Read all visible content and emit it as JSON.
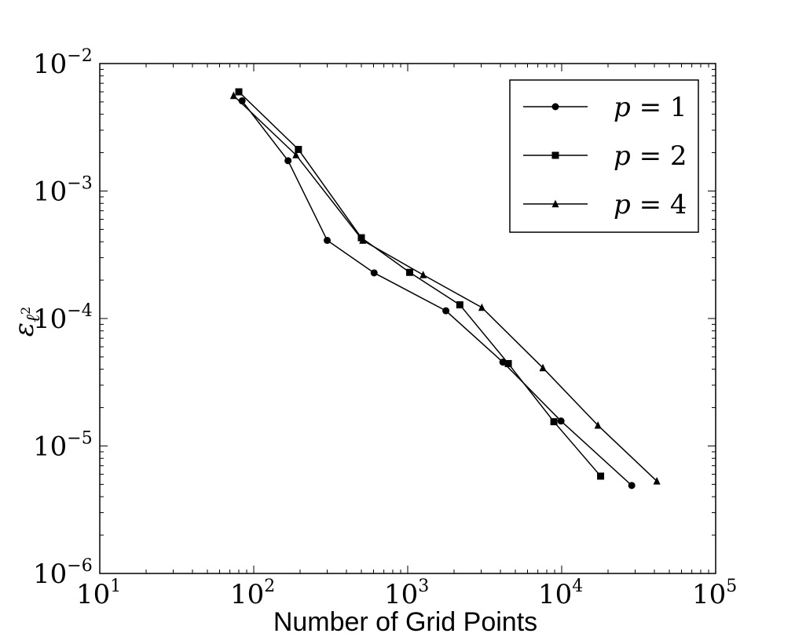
{
  "chart_data": {
    "type": "line",
    "x_scale": "log",
    "y_scale": "log",
    "xlim": [
      10,
      100000
    ],
    "ylim": [
      1e-06,
      0.01
    ],
    "xlabel": "Number of Grid Points",
    "ylabel": "ε_{ℓ²}",
    "ylabel_parts": {
      "base": "ε",
      "sub": "ℓ",
      "sup": "2"
    },
    "title": "",
    "grid": false,
    "legend_position": "top-right",
    "x_ticks": [
      {
        "base": "10",
        "exp": "1"
      },
      {
        "base": "10",
        "exp": "2"
      },
      {
        "base": "10",
        "exp": "3"
      },
      {
        "base": "10",
        "exp": "4"
      },
      {
        "base": "10",
        "exp": "5"
      }
    ],
    "y_ticks": [
      {
        "base": "10",
        "exp": "−6"
      },
      {
        "base": "10",
        "exp": "−5"
      },
      {
        "base": "10",
        "exp": "−4"
      },
      {
        "base": "10",
        "exp": "−3"
      },
      {
        "base": "10",
        "exp": "−2"
      }
    ],
    "series": [
      {
        "name": "p = 1",
        "marker": "circle",
        "x": [
          84,
          167,
          300,
          605,
          1770,
          4150,
          9900,
          28500
        ],
        "y": [
          0.0051,
          0.00173,
          0.00041,
          0.000228,
          0.000115,
          4.55e-05,
          1.57e-05,
          4.9e-06
        ]
      },
      {
        "name": "p = 2",
        "marker": "square",
        "x": [
          80,
          195,
          500,
          1030,
          2180,
          4500,
          8900,
          17900
        ],
        "y": [
          0.006,
          0.00212,
          0.00043,
          0.00023,
          0.000128,
          4.43e-05,
          1.55e-05,
          5.8e-06
        ]
      },
      {
        "name": "p = 4",
        "marker": "triangle",
        "x": [
          74,
          188,
          510,
          1260,
          3030,
          7550,
          17200,
          41500
        ],
        "y": [
          0.0056,
          0.00192,
          0.00041,
          0.00022,
          0.000122,
          4.1e-05,
          1.45e-05,
          5.3e-06
        ]
      }
    ]
  },
  "legend": {
    "entries": [
      {
        "label": "p",
        "value": "1"
      },
      {
        "label": "p",
        "value": "2"
      },
      {
        "label": "p",
        "value": "4"
      }
    ]
  }
}
